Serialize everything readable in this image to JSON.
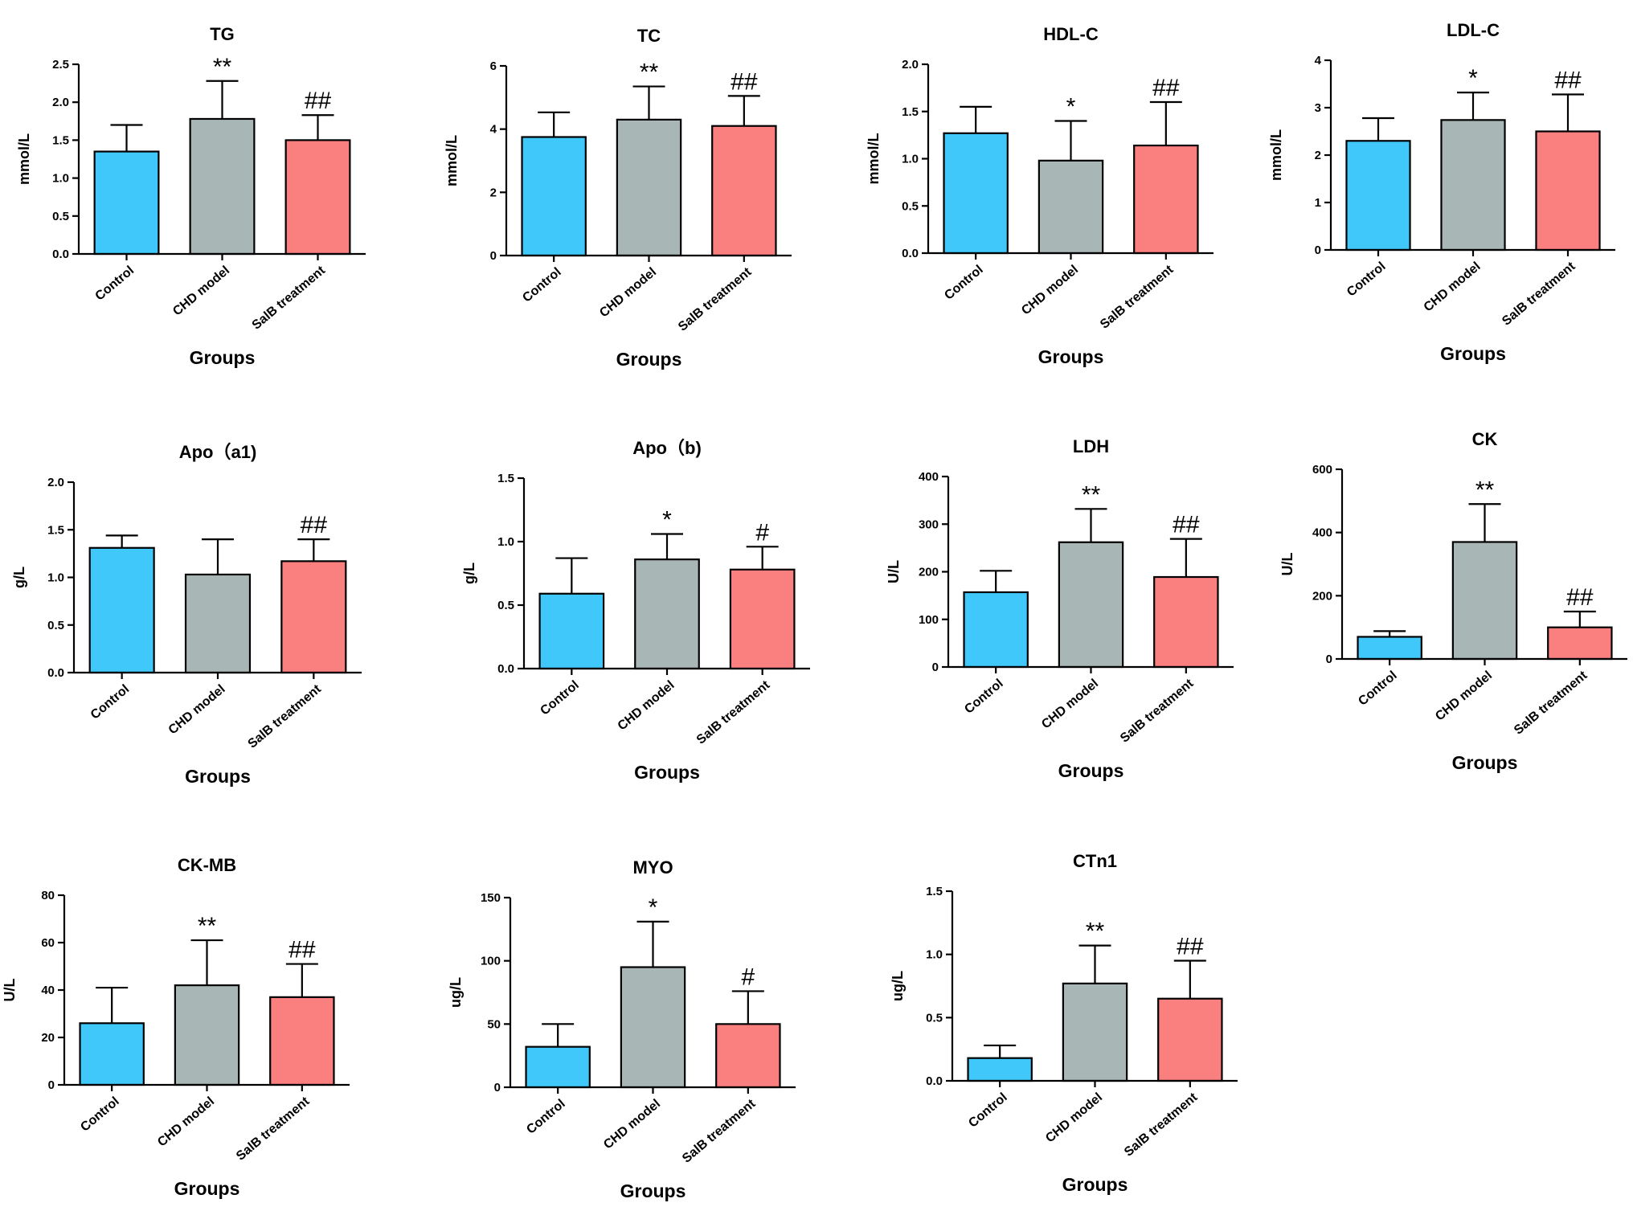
{
  "colors": {
    "control": "#40C8FA",
    "chd_model": "#A9B6B6",
    "salb_treatment": "#FA8080"
  },
  "chart_data": [
    {
      "type": "bar",
      "title": "TG",
      "ylabel": "mmol/L",
      "xlabel": "Groups",
      "categories": [
        "Control",
        "CHD model",
        "SalB treatment"
      ],
      "values": [
        1.35,
        1.78,
        1.5
      ],
      "errors": [
        0.35,
        0.5,
        0.33
      ],
      "significance": [
        "",
        "**",
        "##"
      ],
      "ylim": [
        0,
        2.5
      ],
      "yticks": [
        "0.0",
        "0.5",
        "1.0",
        "1.5",
        "2.0",
        "2.5"
      ]
    },
    {
      "type": "bar",
      "title": "TC",
      "ylabel": "mmol/L",
      "xlabel": "Groups",
      "categories": [
        "Control",
        "CHD model",
        "SalB treatment"
      ],
      "values": [
        3.75,
        4.3,
        4.1
      ],
      "errors": [
        0.78,
        1.05,
        0.95
      ],
      "significance": [
        "",
        "**",
        "##"
      ],
      "ylim": [
        0,
        6
      ],
      "yticks": [
        "0",
        "2",
        "4",
        "6"
      ]
    },
    {
      "type": "bar",
      "title": "HDL-C",
      "ylabel": "mmol/L",
      "xlabel": "Groups",
      "categories": [
        "Control",
        "CHD model",
        "SalB treatment"
      ],
      "values": [
        1.27,
        0.98,
        1.14
      ],
      "errors": [
        0.28,
        0.42,
        0.46
      ],
      "significance": [
        "",
        "*",
        "##"
      ],
      "ylim": [
        0,
        2.0
      ],
      "yticks": [
        "0.0",
        "0.5",
        "1.0",
        "1.5",
        "2.0"
      ]
    },
    {
      "type": "bar",
      "title": "LDL-C",
      "ylabel": "mmol/L",
      "xlabel": "Groups",
      "categories": [
        "Control",
        "CHD model",
        "SalB treatment"
      ],
      "values": [
        2.3,
        2.74,
        2.5
      ],
      "errors": [
        0.48,
        0.58,
        0.78
      ],
      "significance": [
        "",
        "*",
        "##"
      ],
      "ylim": [
        0,
        4
      ],
      "yticks": [
        "0",
        "1",
        "2",
        "3",
        "4"
      ]
    },
    {
      "type": "bar",
      "title": "Apo（a1)",
      "ylabel": "g/L",
      "xlabel": "Groups",
      "categories": [
        "Control",
        "CHD model",
        "SalB treatment"
      ],
      "values": [
        1.31,
        1.03,
        1.17
      ],
      "errors": [
        0.13,
        0.37,
        0.23
      ],
      "significance": [
        "",
        "",
        "##"
      ],
      "ylim": [
        0,
        2.0
      ],
      "yticks": [
        "0.0",
        "0.5",
        "1.0",
        "1.5",
        "2.0"
      ]
    },
    {
      "type": "bar",
      "title": "Apo（b)",
      "ylabel": "g/L",
      "xlabel": "Groups",
      "categories": [
        "Control",
        "CHD model",
        "SalB treatment"
      ],
      "values": [
        0.59,
        0.86,
        0.78
      ],
      "errors": [
        0.28,
        0.2,
        0.18
      ],
      "significance": [
        "",
        "*",
        "#"
      ],
      "ylim": [
        0,
        1.5
      ],
      "yticks": [
        "0.0",
        "0.5",
        "1.0",
        "1.5"
      ]
    },
    {
      "type": "bar",
      "title": "LDH",
      "ylabel": "U/L",
      "xlabel": "Groups",
      "categories": [
        "Control",
        "CHD model",
        "SalB treatment"
      ],
      "values": [
        157,
        262,
        189
      ],
      "errors": [
        45,
        70,
        80
      ],
      "significance": [
        "",
        "**",
        "##"
      ],
      "ylim": [
        0,
        400
      ],
      "yticks": [
        "0",
        "100",
        "200",
        "300",
        "400"
      ]
    },
    {
      "type": "bar",
      "title": "CK",
      "ylabel": "U/L",
      "xlabel": "Groups",
      "categories": [
        "Control",
        "CHD model",
        "SalB treatment"
      ],
      "values": [
        70,
        370,
        100
      ],
      "errors": [
        18,
        120,
        50
      ],
      "significance": [
        "",
        "**",
        "##"
      ],
      "ylim": [
        0,
        600
      ],
      "yticks": [
        "0",
        "200",
        "400",
        "600"
      ]
    },
    {
      "type": "bar",
      "title": "CK-MB",
      "ylabel": "U/L",
      "xlabel": "Groups",
      "categories": [
        "Control",
        "CHD model",
        "SalB treatment"
      ],
      "values": [
        26,
        42,
        37
      ],
      "errors": [
        15,
        19,
        14
      ],
      "significance": [
        "",
        "**",
        "##"
      ],
      "ylim": [
        0,
        80
      ],
      "yticks": [
        "0",
        "20",
        "40",
        "60",
        "80"
      ]
    },
    {
      "type": "bar",
      "title": "MYO",
      "ylabel": "ug/L",
      "xlabel": "Groups",
      "categories": [
        "Control",
        "CHD model",
        "SalB treatment"
      ],
      "values": [
        32,
        95,
        50
      ],
      "errors": [
        18,
        36,
        26
      ],
      "significance": [
        "",
        "*",
        "#"
      ],
      "ylim": [
        0,
        150
      ],
      "yticks": [
        "0",
        "50",
        "100",
        "150"
      ]
    },
    {
      "type": "bar",
      "title": "CTn1",
      "ylabel": "ug/L",
      "xlabel": "Groups",
      "categories": [
        "Control",
        "CHD model",
        "SalB treatment"
      ],
      "values": [
        0.18,
        0.77,
        0.65
      ],
      "errors": [
        0.1,
        0.3,
        0.3
      ],
      "significance": [
        "",
        "**",
        "##"
      ],
      "ylim": [
        0,
        1.5
      ],
      "yticks": [
        "0.0",
        "0.5",
        "1.0",
        "1.5"
      ]
    }
  ]
}
